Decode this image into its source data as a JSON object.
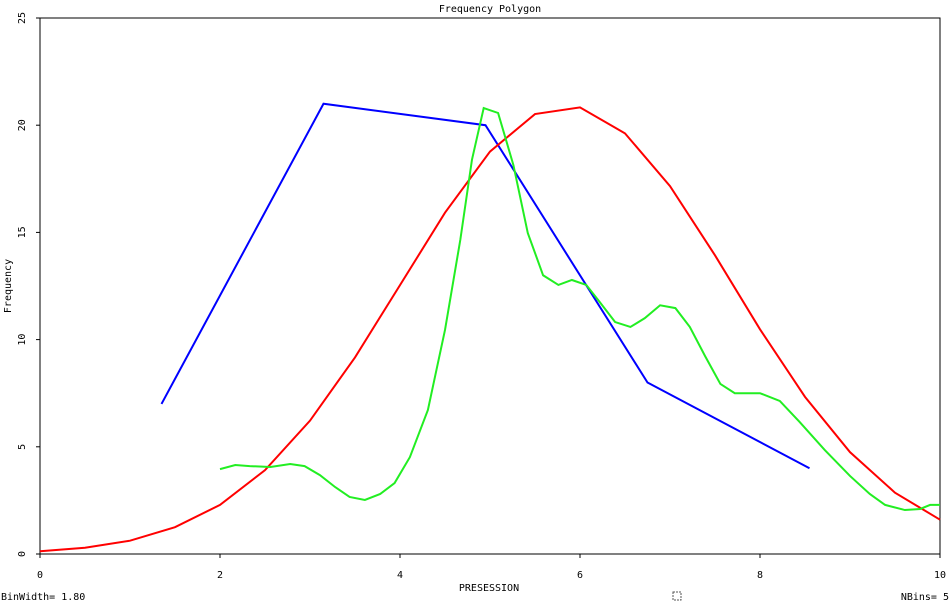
{
  "chart_data": {
    "type": "line",
    "title": "Frequency Polygon",
    "xlabel": "PRESESSION",
    "ylabel": "Frequency",
    "footer_left": "BinWidth= 1.80",
    "footer_right": "NBins= 5",
    "xlim": [
      0,
      10
    ],
    "xticks": [
      0,
      2,
      4,
      6,
      8,
      10
    ],
    "ylim": [
      0,
      25
    ],
    "yticks": [
      0,
      5,
      10,
      15,
      20,
      25
    ],
    "series": [
      {
        "color": "#0000ff",
        "x": [
          1.35,
          3.15,
          4.95,
          6.75,
          8.55
        ],
        "values": [
          7,
          21,
          20,
          8,
          4
        ]
      },
      {
        "color": "#ff0000",
        "x": [
          0,
          0.5,
          1,
          1.5,
          2,
          2.5,
          3,
          3.5,
          4,
          4.5,
          5,
          5.5,
          6,
          6.5,
          7,
          7.5,
          8,
          8.5,
          9,
          9.5,
          10
        ],
        "values": [
          0.13,
          0.29,
          0.62,
          1.25,
          2.29,
          3.91,
          6.22,
          9.17,
          12.54,
          15.92,
          18.77,
          20.52,
          20.83,
          19.62,
          17.16,
          13.93,
          10.48,
          7.33,
          4.75,
          2.86,
          1.6
        ]
      },
      {
        "color": "#22ee22",
        "x": [
          2.0,
          2.17,
          2.33,
          2.56,
          2.78,
          2.94,
          3.11,
          3.28,
          3.44,
          3.61,
          3.78,
          3.94,
          4.11,
          4.31,
          4.5,
          4.67,
          4.8,
          4.93,
          5.09,
          5.26,
          5.42,
          5.59,
          5.76,
          5.91,
          6.07,
          6.22,
          6.39,
          6.56,
          6.72,
          6.89,
          7.06,
          7.22,
          7.39,
          7.56,
          7.72,
          8.0,
          8.22,
          8.44,
          8.72,
          9.0,
          9.22,
          9.39,
          9.61,
          9.78,
          9.89,
          10
        ],
        "values": [
          3.96,
          4.15,
          4.1,
          4.06,
          4.2,
          4.1,
          3.68,
          3.12,
          2.66,
          2.52,
          2.8,
          3.31,
          4.52,
          6.72,
          10.45,
          14.65,
          18.4,
          20.8,
          20.57,
          18.14,
          14.97,
          13.0,
          12.55,
          12.78,
          12.55,
          11.75,
          10.82,
          10.59,
          11.0,
          11.6,
          11.47,
          10.59,
          9.23,
          7.93,
          7.5,
          7.5,
          7.14,
          6.16,
          4.85,
          3.64,
          2.8,
          2.29,
          2.05,
          2.1,
          2.29,
          2.29
        ]
      }
    ]
  }
}
